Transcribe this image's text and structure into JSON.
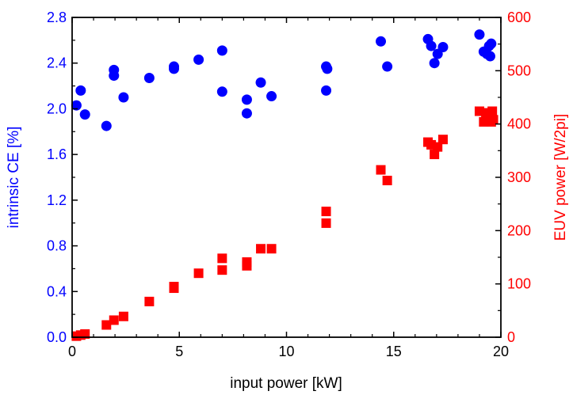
{
  "chart_data": {
    "type": "scatter",
    "title": "",
    "xlabel": "input power [kW]",
    "ylabel_left": "intrinsic CE [%]",
    "ylabel_right": "EUV power [W/2pi]",
    "xlim": [
      0,
      20
    ],
    "ylim_left": [
      0.0,
      2.8
    ],
    "ylim_right": [
      0,
      600
    ],
    "x_ticks": [
      "0",
      "5",
      "10",
      "15",
      "20"
    ],
    "y_left_ticks": [
      "0.0",
      "0.4",
      "0.8",
      "1.2",
      "1.6",
      "2.0",
      "2.4",
      "2.8"
    ],
    "y_right_ticks": [
      "0",
      "100",
      "200",
      "300",
      "400",
      "500",
      "600"
    ],
    "grid": false,
    "colors": {
      "ce": "#0000ff",
      "euv": "#ff0000",
      "axes": "#000000"
    },
    "series": [
      {
        "axis": "left",
        "marker": "circle",
        "color": "#0000ff",
        "points": [
          [
            0.2,
            2.03
          ],
          [
            0.4,
            2.16
          ],
          [
            0.6,
            1.95
          ],
          [
            1.6,
            1.85
          ],
          [
            1.95,
            2.34
          ],
          [
            1.95,
            2.29
          ],
          [
            2.4,
            2.1
          ],
          [
            3.6,
            2.27
          ],
          [
            4.75,
            2.37
          ],
          [
            4.75,
            2.35
          ],
          [
            5.9,
            2.43
          ],
          [
            7.0,
            2.51
          ],
          [
            7.0,
            2.15
          ],
          [
            8.15,
            2.08
          ],
          [
            8.15,
            1.96
          ],
          [
            8.8,
            2.23
          ],
          [
            9.3,
            2.11
          ],
          [
            11.85,
            2.37
          ],
          [
            11.9,
            2.35
          ],
          [
            11.85,
            2.16
          ],
          [
            14.4,
            2.59
          ],
          [
            14.7,
            2.37
          ],
          [
            16.6,
            2.61
          ],
          [
            16.75,
            2.55
          ],
          [
            16.9,
            2.4
          ],
          [
            17.05,
            2.48
          ],
          [
            17.3,
            2.54
          ],
          [
            19.0,
            2.65
          ],
          [
            19.2,
            2.5
          ],
          [
            19.35,
            2.48
          ],
          [
            19.45,
            2.55
          ],
          [
            19.55,
            2.57
          ],
          [
            19.5,
            2.46
          ]
        ]
      },
      {
        "axis": "right",
        "marker": "square",
        "color": "#ff0000",
        "points": [
          [
            0.2,
            2
          ],
          [
            0.4,
            4
          ],
          [
            0.6,
            6
          ],
          [
            1.6,
            23
          ],
          [
            1.95,
            32
          ],
          [
            2.4,
            39
          ],
          [
            3.6,
            67
          ],
          [
            4.75,
            95
          ],
          [
            4.75,
            92
          ],
          [
            5.9,
            120
          ],
          [
            7.0,
            148
          ],
          [
            7.0,
            126
          ],
          [
            8.15,
            141
          ],
          [
            8.15,
            134
          ],
          [
            8.8,
            166
          ],
          [
            9.3,
            166
          ],
          [
            11.85,
            236
          ],
          [
            11.85,
            214
          ],
          [
            14.4,
            314
          ],
          [
            14.7,
            294
          ],
          [
            16.6,
            366
          ],
          [
            16.75,
            361
          ],
          [
            16.9,
            343
          ],
          [
            17.05,
            357
          ],
          [
            17.3,
            371
          ],
          [
            19.0,
            424
          ],
          [
            19.2,
            404
          ],
          [
            19.3,
            421
          ],
          [
            19.45,
            411
          ],
          [
            19.55,
            404
          ],
          [
            19.6,
            424
          ],
          [
            19.65,
            408
          ]
        ]
      }
    ]
  }
}
